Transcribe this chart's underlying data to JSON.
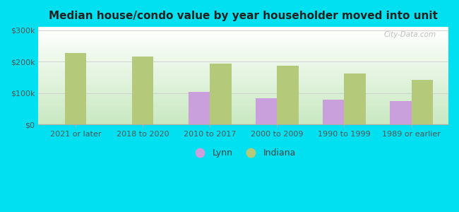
{
  "title": "Median house/condo value by year householder moved into unit",
  "categories": [
    "2021 or later",
    "2018 to 2020",
    "2010 to 2017",
    "2000 to 2009",
    "1990 to 1999",
    "1989 or earlier"
  ],
  "lynn_values": [
    null,
    null,
    104000,
    83000,
    80000,
    75000
  ],
  "indiana_values": [
    228000,
    215000,
    193000,
    187000,
    163000,
    143000
  ],
  "lynn_color": "#c9a0dc",
  "indiana_color": "#b5c97a",
  "background_outer": "#00e0f0",
  "background_top": "#ffffff",
  "background_bottom": "#c8e8c0",
  "ylabel_ticks": [
    "$0",
    "$100k",
    "$200k",
    "$300k"
  ],
  "ytick_values": [
    0,
    100000,
    200000,
    300000
  ],
  "ylim": [
    0,
    310000
  ],
  "bar_width": 0.32,
  "legend_labels": [
    "Lynn",
    "Indiana"
  ],
  "watermark": "City-Data.com",
  "title_fontsize": 11,
  "tick_fontsize": 8,
  "legend_fontsize": 9
}
